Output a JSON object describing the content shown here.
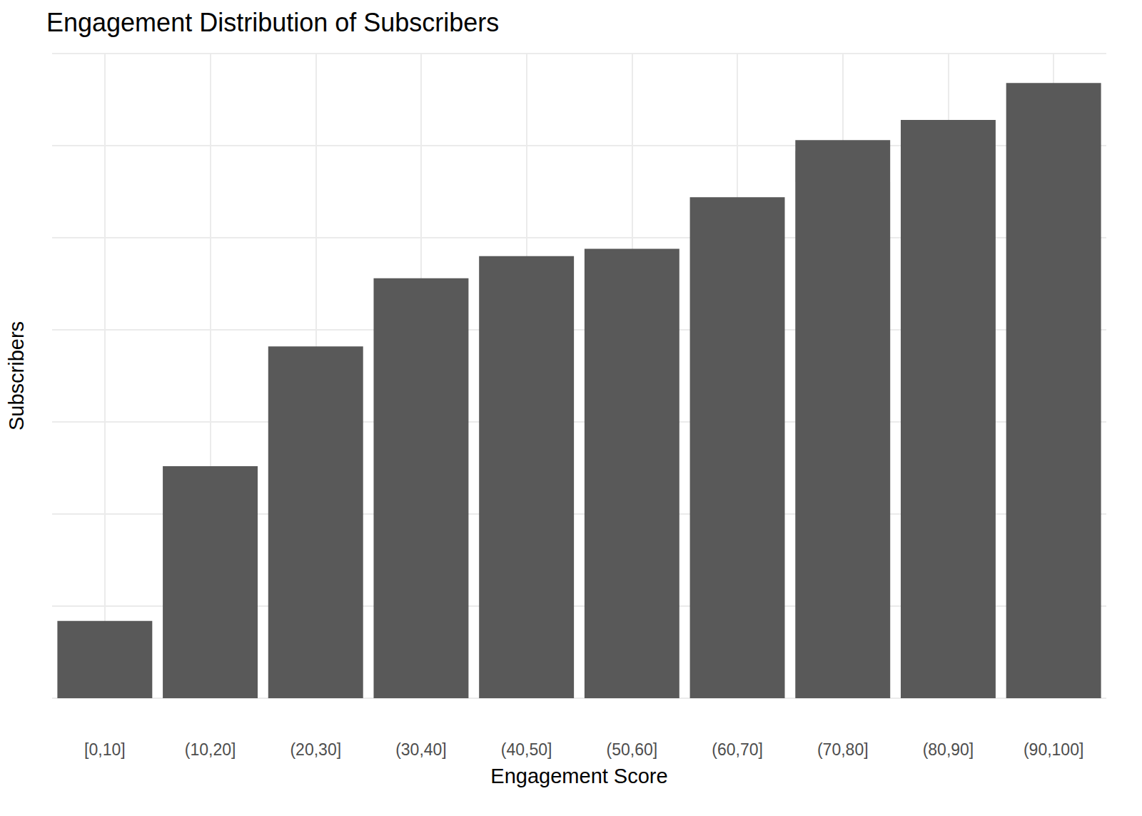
{
  "chart_data": {
    "type": "bar",
    "title": "Engagement Distribution of Subscribers",
    "x_label": "Engagement Score",
    "y_label": "Subscribers",
    "categories": [
      "[0,10]",
      "(10,20]",
      "(20,30]",
      "(30,40]",
      "(40,50]",
      "(50,60]",
      "(60,70]",
      "(70,80]",
      "(80,90]",
      "(90,100]"
    ],
    "values": [
      42,
      126,
      191,
      228,
      240,
      244,
      272,
      303,
      314,
      334
    ],
    "color": "#595959",
    "ylim": [
      0,
      350
    ],
    "yticks": [
      0,
      50,
      100,
      150,
      200,
      250,
      300,
      350
    ],
    "grid": true,
    "tick_labels": "x"
  }
}
